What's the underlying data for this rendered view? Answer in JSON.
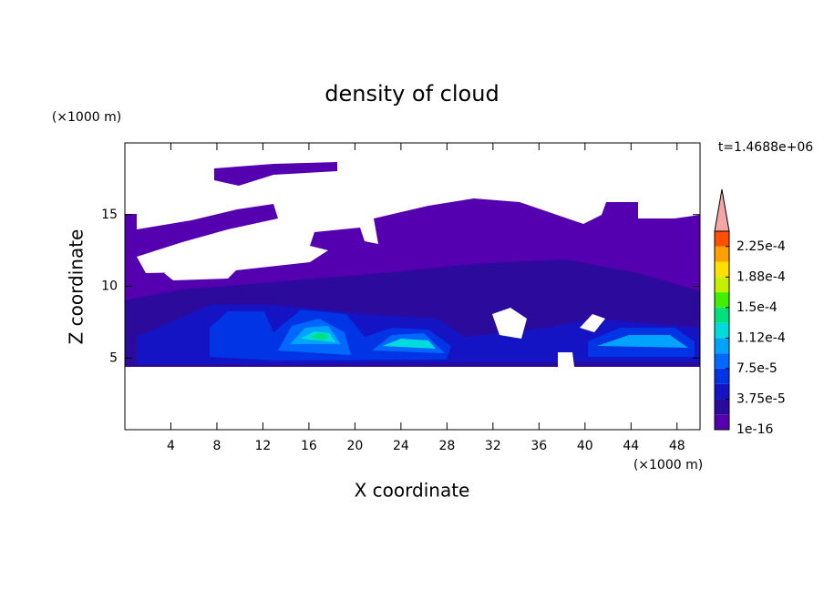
{
  "chart_data": {
    "type": "contour",
    "title": "density of cloud",
    "x_label": "X coordinate",
    "y_label": "Z coordinate",
    "x_unit": "(×1000 m)",
    "y_unit": "(×1000 m)",
    "time_label": "t=1.4688e+06",
    "xlim": [
      0,
      50
    ],
    "xticks": [
      4,
      8,
      12,
      16,
      20,
      24,
      28,
      32,
      36,
      40,
      44,
      48
    ],
    "ylim": [
      0,
      20
    ],
    "yticks": [
      5,
      10,
      15
    ],
    "colorbar": {
      "lim": [
        1e-16,
        0.00024375
      ],
      "colors": [
        "#5500b0",
        "#2c0a9c",
        "#1414c4",
        "#0034e4",
        "#0068ff",
        "#00a4ff",
        "#00dcdc",
        "#00e07c",
        "#40f000",
        "#c4f000",
        "#ffe000",
        "#ffa000",
        "#ff5000"
      ],
      "extend_color": "#f4a6a6",
      "ticks": [
        {
          "value": 1e-16,
          "label": "1e-16"
        },
        {
          "value": 3.75e-05,
          "label": "3.75e-5"
        },
        {
          "value": 7.5e-05,
          "label": "7.5e-5"
        },
        {
          "value": 0.0001125,
          "label": "1.12e-4"
        },
        {
          "value": 0.00015,
          "label": "1.5e-4"
        },
        {
          "value": 0.0001875,
          "label": "1.88e-4"
        },
        {
          "value": 0.000225,
          "label": "2.25e-4"
        }
      ]
    }
  }
}
